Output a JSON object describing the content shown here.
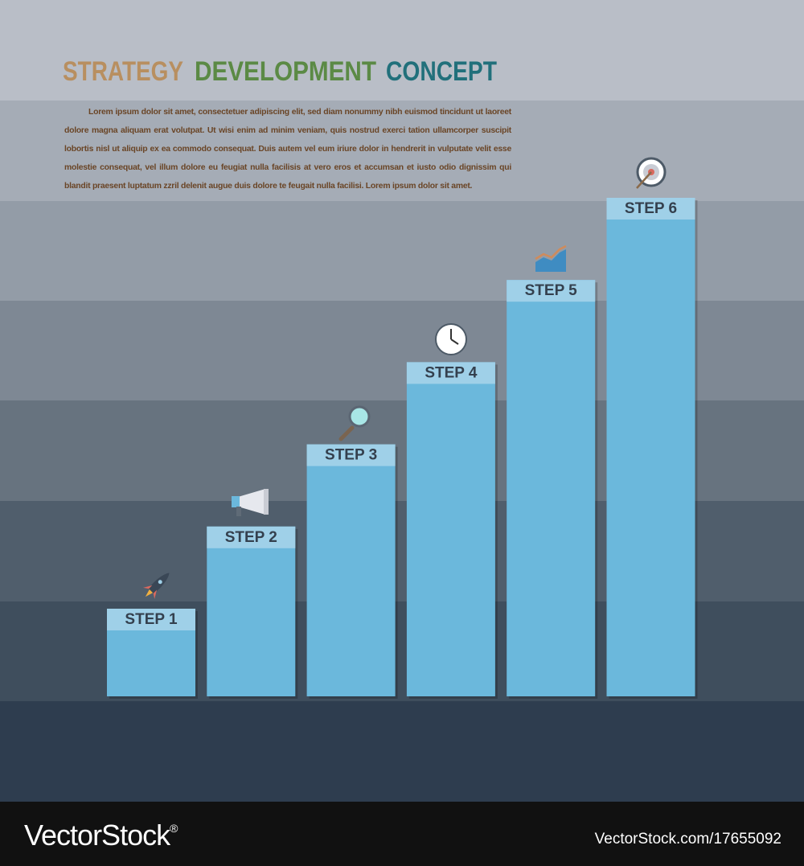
{
  "title": {
    "part1": "STRATEGY",
    "part2": "DEVELOPMENT",
    "part3": "CONCEPT"
  },
  "body": "Lorem ipsum dolor sit amet, consectetuer adipiscing elit, sed diam nonummy nibh euismod tincidunt ut laoreet dolore magna aliquam erat volutpat. Ut wisi enim ad minim veniam, quis nostrud exerci tation ullamcorper suscipit lobortis nisl ut aliquip ex ea commodo consequat. Duis autem vel eum iriure dolor in hendrerit in vulputate velit esse molestie consequat, vel illum dolore eu feugiat nulla facilisis at vero eros et accumsan et iusto odio dignissim qui blandit praesent luptatum zzril delenit augue duis dolore te feugait nulla facilisi. Lorem ipsum dolor sit amet.",
  "steps": [
    {
      "label": "STEP 1"
    },
    {
      "label": "STEP 2"
    },
    {
      "label": "STEP 3"
    },
    {
      "label": "STEP 4"
    },
    {
      "label": "STEP 5"
    },
    {
      "label": "STEP 6"
    }
  ],
  "footer": {
    "brand": "VectorStock",
    "mark": "®",
    "id": "VectorStock.com/17655092"
  }
}
